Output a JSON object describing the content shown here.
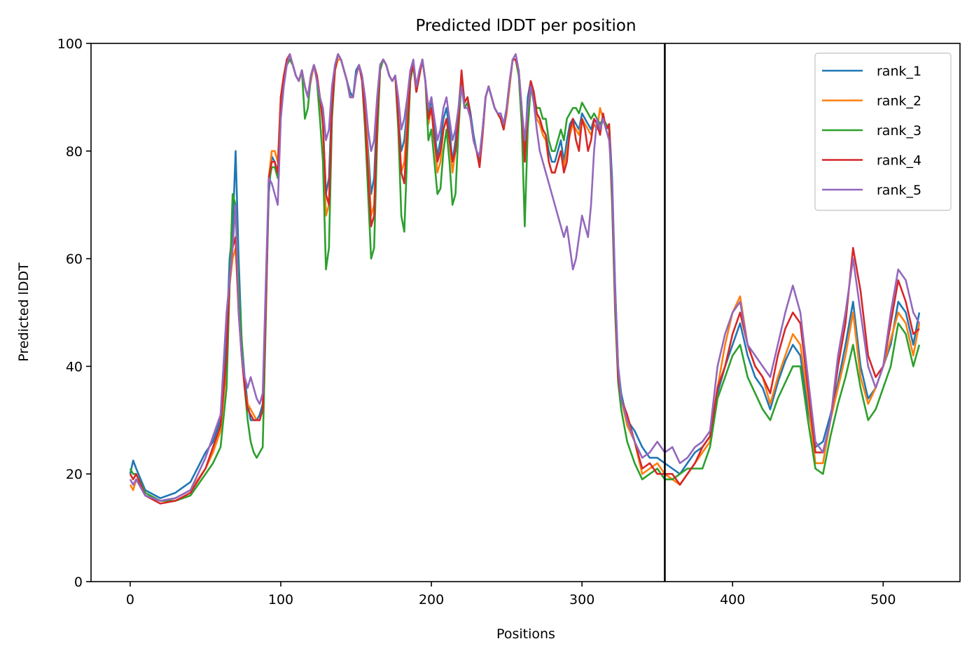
{
  "chart_data": {
    "type": "line",
    "title": "Predicted lDDT per position",
    "xlabel": "Positions",
    "ylabel": "Predicted lDDT",
    "xlim": [
      -26,
      551
    ],
    "ylim": [
      0,
      100
    ],
    "xticks": [
      0,
      100,
      200,
      300,
      400,
      500
    ],
    "yticks": [
      0,
      20,
      40,
      60,
      80,
      100
    ],
    "grid": false,
    "legend_position": "top-right",
    "vertical_line_x": 355,
    "x": [
      0,
      2,
      4,
      10,
      20,
      30,
      40,
      50,
      55,
      60,
      64,
      66,
      68,
      70,
      72,
      74,
      76,
      78,
      80,
      82,
      84,
      86,
      88,
      90,
      92,
      94,
      96,
      98,
      100,
      102,
      104,
      106,
      108,
      110,
      112,
      114,
      116,
      118,
      120,
      122,
      124,
      126,
      128,
      130,
      132,
      134,
      136,
      138,
      140,
      142,
      144,
      146,
      148,
      150,
      152,
      154,
      156,
      158,
      160,
      162,
      164,
      166,
      168,
      170,
      172,
      174,
      176,
      178,
      180,
      182,
      184,
      186,
      188,
      190,
      192,
      194,
      196,
      198,
      200,
      202,
      204,
      206,
      208,
      210,
      212,
      214,
      216,
      218,
      220,
      222,
      224,
      226,
      228,
      230,
      232,
      234,
      236,
      238,
      240,
      242,
      244,
      246,
      248,
      250,
      252,
      254,
      256,
      258,
      260,
      262,
      264,
      266,
      268,
      270,
      272,
      274,
      276,
      278,
      280,
      282,
      284,
      286,
      288,
      290,
      292,
      294,
      296,
      298,
      300,
      302,
      304,
      306,
      308,
      310,
      312,
      314,
      316,
      318,
      320,
      322,
      324,
      326,
      330,
      335,
      340,
      345,
      350,
      355,
      360,
      365,
      370,
      375,
      380,
      385,
      390,
      395,
      400,
      405,
      410,
      415,
      420,
      425,
      430,
      435,
      440,
      445,
      450,
      455,
      460,
      465,
      470,
      475,
      480,
      485,
      490,
      495,
      500,
      505,
      510,
      515,
      520,
      524
    ],
    "series": [
      {
        "name": "rank_1",
        "color": "#1f77b4",
        "values": [
          20,
          22.5,
          21,
          17,
          15.5,
          16.5,
          18.5,
          24,
          26,
          30,
          45,
          60,
          65,
          80,
          60,
          45,
          38,
          33,
          30,
          30,
          30,
          31,
          33,
          50,
          72,
          79,
          78,
          75,
          88,
          93,
          96,
          97,
          96,
          94,
          93,
          95,
          92,
          90,
          94,
          96,
          94,
          90,
          85,
          72,
          75,
          90,
          96,
          98,
          97,
          95,
          93,
          91,
          90,
          95,
          96,
          94,
          88,
          80,
          72,
          75,
          88,
          96,
          97,
          96,
          94,
          93,
          94,
          86,
          80,
          82,
          88,
          94,
          96,
          91,
          94,
          97,
          93,
          86,
          90,
          84,
          79,
          82,
          86,
          88,
          84,
          78,
          82,
          88,
          94,
          89,
          90,
          87,
          83,
          80,
          79,
          84,
          90,
          92,
          90,
          88,
          87,
          87,
          85,
          88,
          93,
          97,
          97,
          95,
          87,
          80,
          90,
          93,
          91,
          87,
          86,
          84,
          83,
          80,
          78,
          78,
          80,
          82,
          78,
          82,
          85,
          86,
          85,
          84,
          87,
          86,
          85,
          84,
          86,
          85,
          84,
          86,
          84,
          85,
          75,
          55,
          40,
          35,
          30,
          28,
          25,
          23,
          23,
          22,
          21,
          20,
          22,
          24,
          25,
          27,
          35,
          40,
          44,
          48,
          42,
          38,
          36,
          32,
          37,
          41,
          44,
          42,
          32,
          25,
          26,
          31,
          37,
          44,
          52,
          40,
          34,
          36,
          40,
          44,
          52,
          50,
          44,
          50
        ]
      },
      {
        "name": "rank_2",
        "color": "#ff7f0e",
        "values": [
          18,
          17,
          19,
          16,
          15,
          15.5,
          17,
          21,
          24,
          28,
          40,
          55,
          60,
          62,
          50,
          42,
          36,
          33,
          32,
          31,
          30,
          30,
          32,
          50,
          75,
          80,
          80,
          78,
          90,
          94,
          96,
          97,
          96,
          94,
          93,
          95,
          92,
          90,
          93,
          96,
          94,
          90,
          85,
          68,
          70,
          88,
          95,
          97,
          97,
          95,
          93,
          90,
          90,
          94,
          96,
          94,
          88,
          78,
          68,
          70,
          86,
          96,
          97,
          96,
          94,
          93,
          94,
          86,
          76,
          78,
          86,
          94,
          96,
          91,
          94,
          97,
          93,
          85,
          88,
          82,
          76,
          78,
          84,
          86,
          82,
          76,
          80,
          86,
          93,
          88,
          89,
          86,
          82,
          80,
          78,
          83,
          90,
          92,
          90,
          88,
          87,
          86,
          84,
          87,
          92,
          97,
          97,
          95,
          88,
          78,
          88,
          92,
          90,
          86,
          85,
          83,
          82,
          78,
          76,
          76,
          78,
          80,
          77,
          80,
          83,
          85,
          84,
          83,
          86,
          85,
          84,
          83,
          85,
          84,
          88,
          86,
          85,
          84,
          72,
          52,
          38,
          34,
          29,
          26,
          20,
          21,
          22,
          20,
          19,
          18,
          20,
          22,
          24,
          26,
          36,
          44,
          50,
          53,
          44,
          40,
          38,
          33,
          38,
          42,
          46,
          44,
          34,
          22,
          22,
          30,
          36,
          42,
          50,
          38,
          33,
          36,
          40,
          45,
          50,
          48,
          42,
          48
        ]
      },
      {
        "name": "rank_3",
        "color": "#2ca02c",
        "values": [
          21,
          20,
          20,
          16.5,
          15,
          15,
          16,
          20,
          22,
          25,
          36,
          55,
          72,
          70,
          55,
          45,
          36,
          30,
          26,
          24,
          23,
          24,
          25,
          48,
          74,
          77,
          77,
          75,
          89,
          93,
          96,
          97,
          96,
          94,
          93,
          95,
          86,
          88,
          94,
          96,
          93,
          86,
          78,
          58,
          62,
          86,
          95,
          98,
          97,
          95,
          93,
          90,
          90,
          94,
          96,
          93,
          84,
          72,
          60,
          62,
          82,
          95,
          97,
          96,
          94,
          93,
          94,
          84,
          68,
          65,
          80,
          93,
          96,
          91,
          94,
          97,
          93,
          82,
          84,
          78,
          72,
          73,
          80,
          84,
          78,
          70,
          72,
          84,
          93,
          88,
          89,
          86,
          82,
          80,
          78,
          84,
          90,
          92,
          90,
          88,
          87,
          86,
          84,
          88,
          93,
          97,
          97,
          94,
          85,
          66,
          84,
          92,
          90,
          88,
          88,
          86,
          86,
          82,
          80,
          80,
          82,
          84,
          82,
          86,
          87,
          88,
          88,
          87,
          89,
          88,
          87,
          86,
          87,
          86,
          85,
          86,
          85,
          84,
          70,
          50,
          37,
          32,
          26,
          22,
          19,
          20,
          21,
          19,
          19,
          20,
          21,
          21,
          21,
          25,
          34,
          38,
          42,
          44,
          38,
          35,
          32,
          30,
          34,
          37,
          40,
          40,
          30,
          21,
          20,
          27,
          33,
          38,
          44,
          36,
          30,
          32,
          36,
          40,
          48,
          46,
          40,
          44
        ]
      },
      {
        "name": "rank_4",
        "color": "#d62728",
        "values": [
          20,
          19,
          20,
          16,
          14.5,
          15,
          16.5,
          21,
          25,
          29,
          42,
          56,
          62,
          64,
          50,
          42,
          36,
          32,
          31,
          30,
          30,
          30,
          32,
          50,
          75,
          78,
          78,
          76,
          90,
          94,
          97,
          98,
          96,
          94,
          93,
          95,
          92,
          90,
          94,
          96,
          94,
          90,
          85,
          72,
          70,
          88,
          95,
          98,
          97,
          95,
          93,
          90,
          90,
          94,
          96,
          93,
          86,
          76,
          66,
          68,
          86,
          96,
          97,
          96,
          94,
          93,
          94,
          86,
          76,
          74,
          84,
          94,
          96,
          91,
          94,
          97,
          93,
          86,
          88,
          82,
          78,
          80,
          84,
          86,
          82,
          78,
          80,
          86,
          95,
          89,
          90,
          86,
          82,
          80,
          77,
          83,
          90,
          92,
          90,
          88,
          87,
          86,
          84,
          88,
          93,
          97,
          97,
          95,
          88,
          78,
          88,
          93,
          91,
          87,
          86,
          84,
          83,
          78,
          76,
          76,
          78,
          80,
          76,
          78,
          84,
          86,
          82,
          80,
          86,
          84,
          80,
          82,
          86,
          85,
          83,
          87,
          84,
          85,
          72,
          52,
          38,
          34,
          31,
          26,
          21,
          22,
          20,
          20,
          20,
          18,
          20,
          22,
          25,
          27,
          36,
          40,
          46,
          50,
          44,
          40,
          38,
          35,
          42,
          47,
          50,
          48,
          36,
          24,
          24,
          30,
          40,
          48,
          62,
          54,
          42,
          38,
          40,
          48,
          56,
          52,
          46,
          47
        ]
      },
      {
        "name": "rank_5",
        "color": "#9467bd",
        "values": [
          19,
          18,
          19,
          16,
          15,
          15.5,
          17,
          23,
          27,
          31,
          50,
          56,
          62,
          70,
          50,
          42,
          38,
          36,
          38,
          36,
          34,
          33,
          35,
          55,
          75,
          74,
          72,
          70,
          86,
          92,
          96,
          98,
          96,
          94,
          93,
          95,
          92,
          90,
          94,
          96,
          93,
          90,
          88,
          82,
          84,
          92,
          96,
          98,
          97,
          95,
          93,
          90,
          90,
          94,
          96,
          94,
          90,
          84,
          80,
          82,
          90,
          96,
          97,
          96,
          94,
          93,
          94,
          90,
          84,
          86,
          90,
          95,
          97,
          92,
          95,
          97,
          93,
          88,
          90,
          86,
          82,
          84,
          88,
          90,
          86,
          82,
          84,
          88,
          92,
          88,
          88,
          86,
          82,
          80,
          79,
          84,
          90,
          92,
          90,
          88,
          87,
          87,
          85,
          88,
          93,
          97,
          98,
          95,
          88,
          82,
          88,
          92,
          89,
          84,
          80,
          78,
          76,
          74,
          72,
          70,
          68,
          66,
          64,
          66,
          62,
          58,
          60,
          64,
          68,
          66,
          64,
          70,
          80,
          86,
          84,
          86,
          84,
          82,
          74,
          54,
          40,
          34,
          30,
          26,
          23,
          24,
          26,
          24,
          25,
          22,
          23,
          25,
          26,
          28,
          40,
          46,
          50,
          52,
          44,
          42,
          40,
          38,
          44,
          50,
          55,
          50,
          38,
          26,
          24,
          30,
          42,
          50,
          60,
          50,
          40,
          36,
          40,
          50,
          58,
          56,
          50,
          48
        ]
      }
    ]
  }
}
